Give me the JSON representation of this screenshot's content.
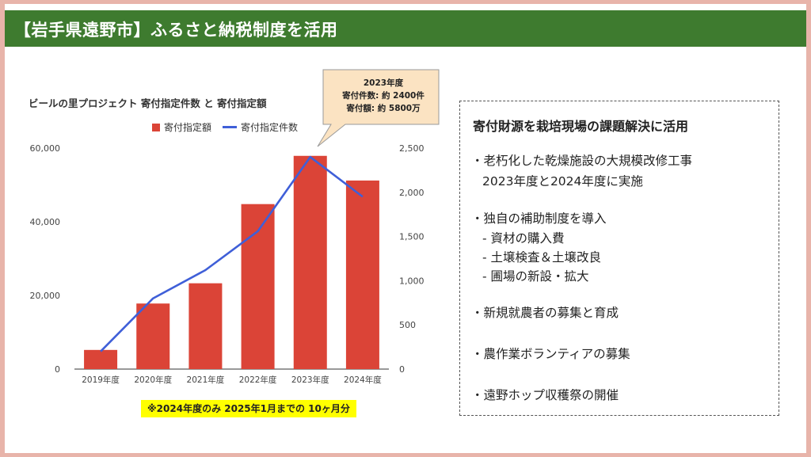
{
  "header": {
    "title": "【岩手県遠野市】ふるさと納税制度を活用"
  },
  "chart_data": {
    "type": "bar",
    "title": "ビールの里プロジェクト 寄付指定件数 と 寄付指定額",
    "categories": [
      "2019年度",
      "2020年度",
      "2021年度",
      "2022年度",
      "2023年度",
      "2024年度"
    ],
    "series": [
      {
        "name": "寄付指定額",
        "type": "bar",
        "axis": "left",
        "color": "#db4437",
        "values": [
          5200,
          17800,
          23300,
          44800,
          57900,
          51200
        ]
      },
      {
        "name": "寄付指定件数",
        "type": "line",
        "axis": "right",
        "color": "#3f5fd8",
        "values": [
          200,
          800,
          1120,
          1560,
          2400,
          1950
        ]
      }
    ],
    "y_left": {
      "range": [
        0,
        60000
      ],
      "ticks": [
        "0",
        "20,000",
        "40,000",
        "60,000"
      ]
    },
    "y_right": {
      "range": [
        0,
        2500
      ],
      "ticks": [
        "0",
        "500",
        "1,000",
        "1,500",
        "2,000",
        "2,500"
      ]
    },
    "grid": false,
    "legend_position": "top",
    "callout": {
      "lines": [
        "2023年度",
        "寄付件数: 約 2400件",
        "寄付額: 約 5800万"
      ]
    },
    "note": "※2024年度のみ 2025年1月までの 10ヶ月分"
  },
  "panel": {
    "heading": "寄付財源を栽培現場の課題解決に活用",
    "items": [
      {
        "text": "・老朽化した乾燥施設の大規模改修工事",
        "sub": [
          "2023年度と2024年度に実施"
        ]
      },
      {
        "text": "・独自の補助制度を導入",
        "sub": [
          "- 資材の購入費",
          "- 土壌検査＆土壌改良",
          "- 圃場の新設・拡大"
        ]
      },
      {
        "text": "・新規就農者の募集と育成",
        "sub": []
      },
      {
        "text": "・農作業ボランティアの募集",
        "sub": []
      },
      {
        "text": "・遠野ホップ収穫祭の開催",
        "sub": []
      }
    ]
  }
}
